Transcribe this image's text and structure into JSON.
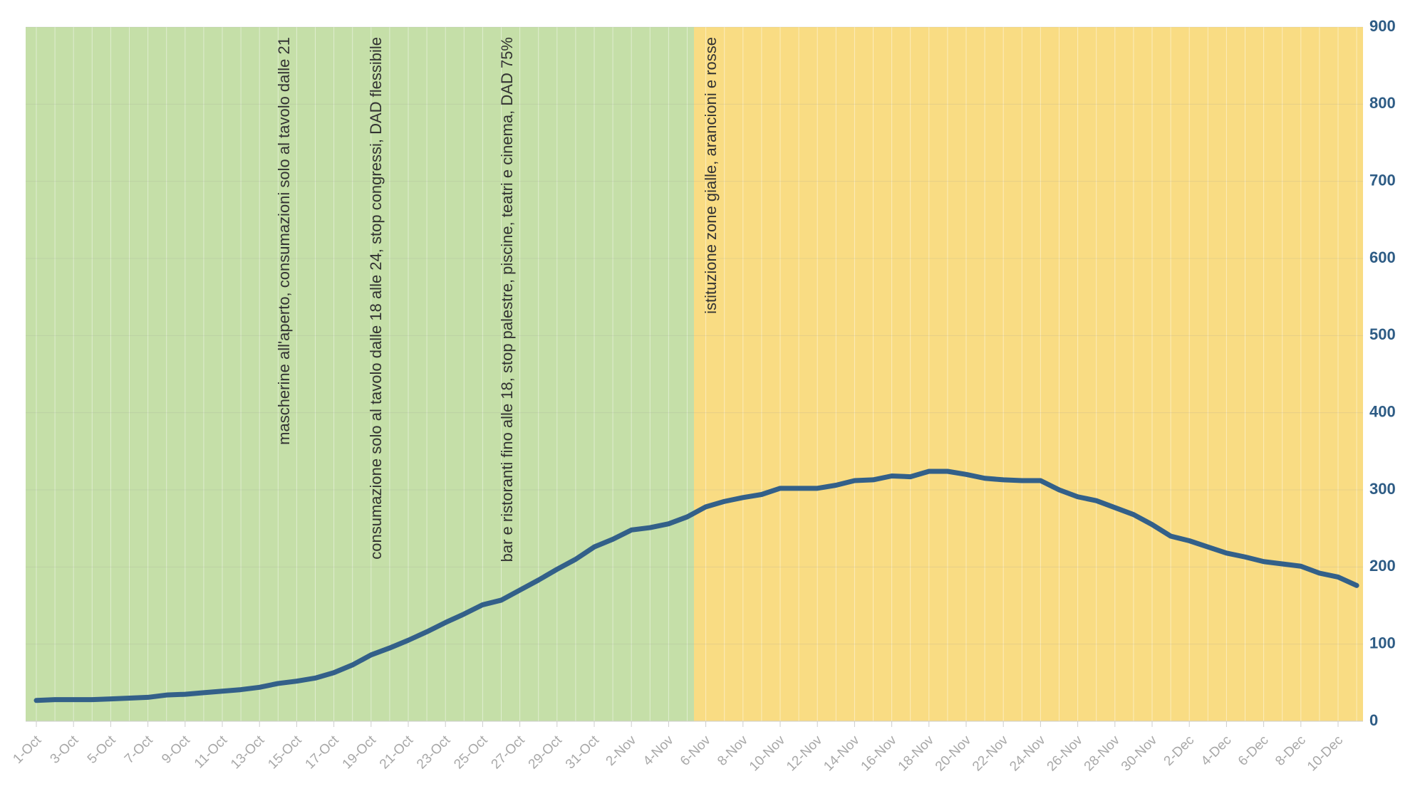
{
  "chart_data": {
    "type": "line",
    "categories": [
      "1-Oct",
      null,
      "3-Oct",
      null,
      "5-Oct",
      null,
      "7-Oct",
      null,
      "9-Oct",
      null,
      "11-Oct",
      null,
      "13-Oct",
      null,
      "15-Oct",
      null,
      "17-Oct",
      null,
      "19-Oct",
      null,
      "21-Oct",
      null,
      "23-Oct",
      null,
      "25-Oct",
      null,
      "27-Oct",
      null,
      "29-Oct",
      null,
      "31-Oct",
      null,
      "2-Nov",
      null,
      "4-Nov",
      null,
      "6-Nov",
      null,
      "8-Nov",
      null,
      "10-Nov",
      null,
      "12-Nov",
      null,
      "14-Nov",
      null,
      "16-Nov",
      null,
      "18-Nov",
      null,
      "20-Nov",
      null,
      "22-Nov",
      null,
      "24-Nov",
      null,
      "26-Nov",
      null,
      "28-Nov",
      null,
      "30-Nov",
      null,
      "2-Dec",
      null,
      "4-Dec",
      null,
      "6-Dec",
      null,
      "8-Dec",
      null,
      "10-Dec",
      null
    ],
    "series": [
      {
        "color": "#336089",
        "values": [
          27,
          28,
          28,
          28,
          29,
          30,
          31,
          34,
          35,
          37,
          39,
          41,
          44,
          49,
          52,
          56,
          63,
          73,
          86,
          95,
          105,
          116,
          128,
          139,
          151,
          157,
          170,
          183,
          197,
          210,
          226,
          236,
          248,
          251,
          256,
          265,
          278,
          285,
          290,
          294,
          302,
          302,
          302,
          306,
          312,
          313,
          318,
          317,
          324,
          324,
          320,
          315,
          313,
          312,
          312,
          300,
          291,
          286,
          277,
          268,
          255,
          240,
          234,
          226,
          218,
          213,
          207,
          204,
          201,
          192,
          187,
          176
        ]
      }
    ],
    "ylim": [
      0,
      900
    ],
    "yticks": [
      0,
      100,
      200,
      300,
      400,
      500,
      600,
      700,
      800,
      900
    ],
    "grid": true,
    "annotations": [
      "mascherine all'aperto, consumazioni solo al tavolo dalle 21",
      "consumazione solo al tavolo dalle 18 alle 24, stop congressi, DAD flessibile",
      "bar e ristoranti fino alle 18, stop palestre, piscine, teatri e cinema, DAD 75%",
      "istituzione zone gialle, arancioni e rosse"
    ]
  }
}
